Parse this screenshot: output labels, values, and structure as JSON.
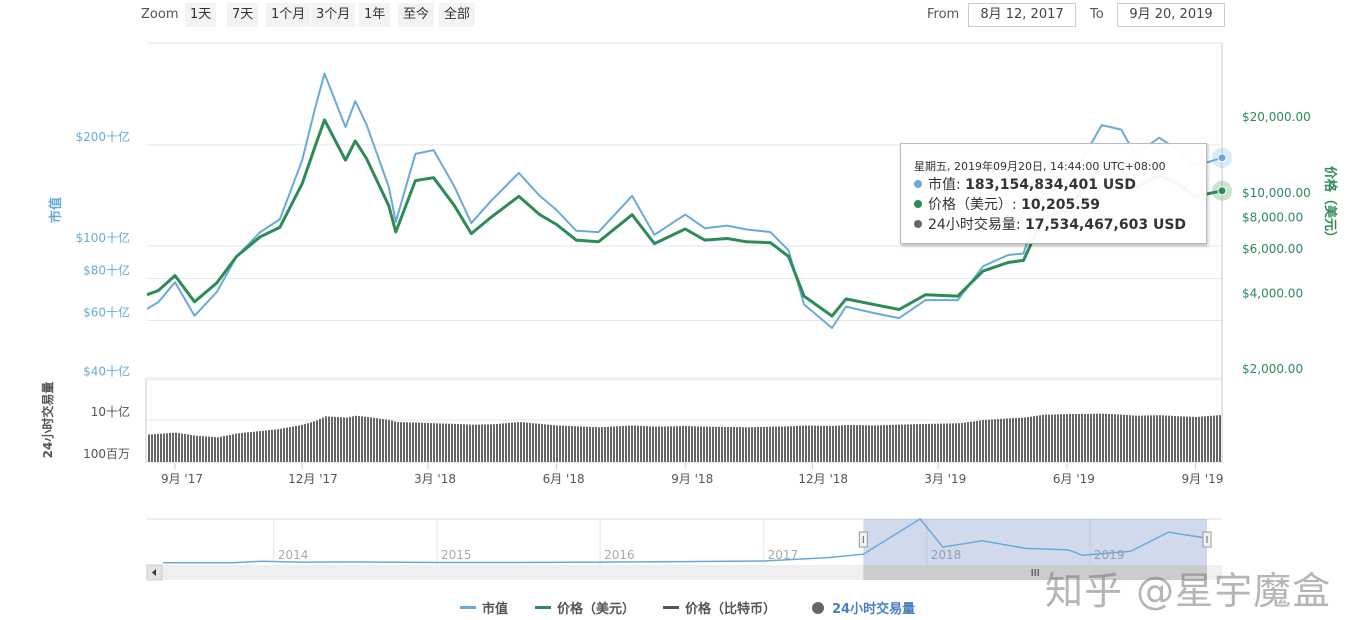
{
  "toolbar": {
    "zoom_label": "Zoom",
    "zoom_buttons": [
      "1天",
      "7天",
      "1个月",
      "3个月",
      "1年",
      "至今",
      "全部"
    ],
    "from_label": "From",
    "from_value": "8月 12, 2017",
    "to_label": "To",
    "to_value": "9月 20, 2019"
  },
  "tooltip": {
    "header": "星期五, 2019年09月20日, 14:44:00 UTC+08:00",
    "rows": [
      {
        "label": "市值: ",
        "value": "183,154,834,401 USD",
        "color": "#6aaadb"
      },
      {
        "label": "价格（美元）: ",
        "value": "10,205.59",
        "color": "#2e8b57"
      },
      {
        "label": "24小时交易量: ",
        "value": "17,534,467,603 USD",
        "color": "#666666"
      }
    ]
  },
  "legend": [
    {
      "label": "市值",
      "color": "#6aaadb",
      "type": "line"
    },
    {
      "label": "价格（美元）",
      "color": "#2e8b57",
      "type": "line"
    },
    {
      "label": "价格（比特币）",
      "color": "#555555",
      "type": "line"
    },
    {
      "label": "24小时交易量",
      "color": "#666666",
      "type": "dot",
      "text_color": "#4a7fc0"
    }
  ],
  "watermark": "知乎 @星宇魔盒",
  "chart_data": {
    "type": "line",
    "x_range": [
      "2017-08-12",
      "2019-09-20"
    ],
    "x_ticks": [
      {
        "date": "2017-09-01",
        "label": "9月 '17"
      },
      {
        "date": "2017-12-01",
        "label": "12月 '17"
      },
      {
        "date": "2018-03-01",
        "label": "3月 '18"
      },
      {
        "date": "2018-06-01",
        "label": "6月 '18"
      },
      {
        "date": "2018-09-01",
        "label": "9月 '18"
      },
      {
        "date": "2018-12-01",
        "label": "12月 '18"
      },
      {
        "date": "2019-03-01",
        "label": "3月 '19"
      },
      {
        "date": "2019-06-01",
        "label": "6月 '19"
      },
      {
        "date": "2019-09-01",
        "label": "9月 '19"
      }
    ],
    "left_axis": {
      "title": "市值",
      "scale": "log",
      "unit": "十亿 USD",
      "color": "#6aaadb",
      "ticks": [
        {
          "value": 200,
          "label": "$200十亿"
        },
        {
          "value": 100,
          "label": "$100十亿"
        },
        {
          "value": 80,
          "label": "$80十亿"
        },
        {
          "value": 60,
          "label": "$60十亿"
        },
        {
          "value": 40,
          "label": "$40十亿"
        }
      ]
    },
    "right_axis": {
      "title": "价格（美元）",
      "scale": "log",
      "color": "#2e8b57",
      "ticks": [
        {
          "value": 20000,
          "label": "$20,000.00"
        },
        {
          "value": 10000,
          "label": "$10,000.00"
        },
        {
          "value": 8000,
          "label": "$8,000.00"
        },
        {
          "value": 6000,
          "label": "$6,000.00"
        },
        {
          "value": 4000,
          "label": "$4,000.00"
        },
        {
          "value": 2000,
          "label": "$2,000.00"
        }
      ]
    },
    "volume_axis": {
      "title": "24小时交易量",
      "scale": "log",
      "unit": "十亿 USD",
      "ticks": [
        {
          "value": 10,
          "label": "10十亿"
        },
        {
          "value": 0.1,
          "label": "100百万"
        }
      ]
    },
    "dates": [
      "2017-08-12",
      "2017-08-20",
      "2017-09-01",
      "2017-09-15",
      "2017-10-01",
      "2017-10-15",
      "2017-11-01",
      "2017-11-15",
      "2017-12-01",
      "2017-12-10",
      "2017-12-17",
      "2018-01-01",
      "2018-01-08",
      "2018-01-16",
      "2018-02-01",
      "2018-02-06",
      "2018-02-20",
      "2018-03-05",
      "2018-03-20",
      "2018-04-01",
      "2018-04-15",
      "2018-05-05",
      "2018-05-20",
      "2018-06-01",
      "2018-06-15",
      "2018-07-01",
      "2018-07-25",
      "2018-08-10",
      "2018-09-01",
      "2018-09-15",
      "2018-10-01",
      "2018-10-15",
      "2018-11-01",
      "2018-11-14",
      "2018-11-25",
      "2018-12-15",
      "2018-12-25",
      "2019-01-15",
      "2019-02-01",
      "2019-02-20",
      "2019-03-15",
      "2019-04-02",
      "2019-04-20",
      "2019-05-01",
      "2019-05-15",
      "2019-06-01",
      "2019-06-26",
      "2019-07-10",
      "2019-07-20",
      "2019-08-06",
      "2019-08-20",
      "2019-09-01",
      "2019-09-20"
    ],
    "series": [
      {
        "name": "市值",
        "axis": "left",
        "color": "#6aaadb",
        "values": [
          65,
          68,
          78,
          62,
          73,
          93,
          110,
          120,
          180,
          255,
          326,
          226,
          270,
          230,
          150,
          118,
          188,
          193,
          150,
          117,
          136,
          165,
          141,
          128,
          111,
          110,
          141,
          108,
          124,
          113,
          115,
          112,
          110,
          97,
          67,
          57,
          66,
          63,
          61,
          69,
          69,
          87,
          94,
          95,
          142,
          151,
          229,
          222,
          187,
          210,
          193,
          173,
          183
        ]
      },
      {
        "name": "价格（美元）",
        "axis": "right",
        "color": "#2e8b57",
        "values": [
          3950,
          4100,
          4700,
          3700,
          4400,
          5600,
          6700,
          7300,
          10900,
          15200,
          19500,
          13500,
          16100,
          13700,
          8900,
          7000,
          11200,
          11500,
          8900,
          6900,
          8000,
          9700,
          8200,
          7500,
          6500,
          6400,
          8200,
          6300,
          7200,
          6500,
          6600,
          6400,
          6350,
          5600,
          3900,
          3250,
          3800,
          3600,
          3450,
          3950,
          3900,
          4900,
          5300,
          5400,
          8000,
          8500,
          12900,
          12500,
          10500,
          11800,
          10800,
          9700,
          10205.59
        ]
      },
      {
        "name": "24小时交易量",
        "axis": "volume",
        "color": "#666666",
        "type": "bar",
        "values": [
          2.0,
          2.2,
          2.5,
          1.8,
          1.5,
          2.3,
          3.0,
          3.8,
          6.0,
          9.0,
          15,
          13,
          16,
          14,
          10,
          8,
          7.5,
          7,
          6.5,
          6,
          6.2,
          8,
          6.5,
          5.5,
          5,
          4.5,
          5.5,
          4.8,
          5.2,
          4.8,
          4.7,
          4.5,
          4.8,
          5,
          5.5,
          5.2,
          5.8,
          5.5,
          6,
          6.5,
          7,
          10,
          12,
          13,
          18,
          19,
          20,
          18,
          16,
          17,
          15,
          14,
          17.5
        ]
      }
    ],
    "navigator": {
      "x_ticks": [
        "2014",
        "2015",
        "2016",
        "2017",
        "2018",
        "2019"
      ],
      "dates": [
        "2013-04-28",
        "2013-10-01",
        "2013-12-04",
        "2014-03-01",
        "2014-07-01",
        "2015-01-01",
        "2015-07-01",
        "2016-01-01",
        "2016-07-01",
        "2017-01-01",
        "2017-05-25",
        "2017-08-12",
        "2017-12-17",
        "2018-02-06",
        "2018-05-05",
        "2018-08-10",
        "2018-11-14",
        "2018-12-15",
        "2019-04-02",
        "2019-06-26",
        "2019-09-20"
      ],
      "values": [
        1.5,
        1.7,
        13,
        7,
        7.5,
        4,
        4,
        6.5,
        10,
        15,
        40,
        65,
        326,
        118,
        165,
        108,
        97,
        57,
        87,
        229,
        183
      ],
      "selected_range": [
        "2017-08-12",
        "2019-09-20"
      ]
    }
  }
}
